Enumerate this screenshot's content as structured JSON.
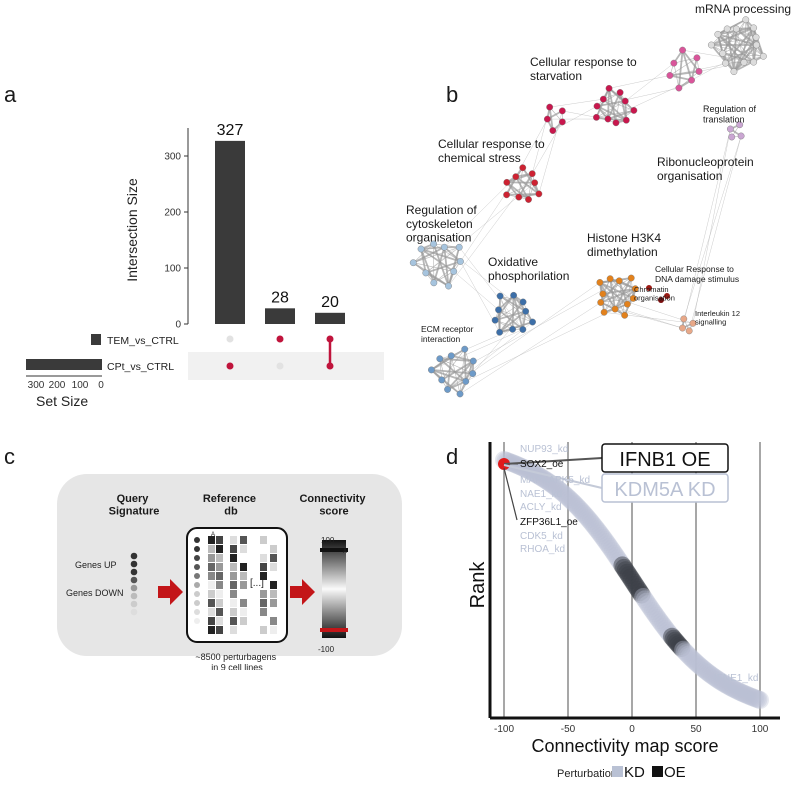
{
  "panels": {
    "a": {
      "letter": "a",
      "chart_data": {
        "type": "bar",
        "title": "",
        "ylabel": "Intersection Size",
        "xlabel": "",
        "ylim": [
          0,
          350
        ],
        "yticks": [
          "0",
          "100",
          "200",
          "300"
        ],
        "categories": [
          "CPt_vs_CTRL only",
          "TEM_vs_CTRL only",
          "TEM_vs_CTRL & CPt_vs_CTRL"
        ],
        "values": [
          327,
          28,
          20
        ],
        "value_labels": [
          "327",
          "28",
          "20"
        ],
        "sets": [
          {
            "name": "TEM_vs_CTRL",
            "size": 48
          },
          {
            "name": "CPt_vs_CTRL",
            "size": 347
          }
        ],
        "set_size_label": "Set Size",
        "set_size_ticks": [
          "300",
          "200",
          "100",
          "0"
        ],
        "matrix": [
          [
            false,
            true
          ],
          [
            true,
            false
          ],
          [
            true,
            true
          ]
        ],
        "bar_color": "#3a3a3a",
        "dot_active_color": "#c0143c",
        "dot_inactive_color": "#e2e2e2"
      }
    },
    "b": {
      "letter": "b",
      "clusters": [
        {
          "label": "mRNA processing",
          "color": "#dcdcdc"
        },
        {
          "label": "Cellular response to\nstarvation",
          "color": "#d9559a"
        },
        {
          "label": "Regulation of\ntranslation",
          "color": "#caa6d2"
        },
        {
          "label": "Ribonucleoprotein\norganisation",
          "color": "#c8174d"
        },
        {
          "label": "Cellular response to\nchemical stress",
          "color": "#cd2232"
        },
        {
          "label": "Regulation of\ncytoskeleton\norganisation",
          "color": "#a6c4de"
        },
        {
          "label": "Oxidative\nphosphorilation",
          "color": "#3d6fa8"
        },
        {
          "label": "Histone H3K4\ndimethylation",
          "color": "#e2811c"
        },
        {
          "label": "Cellular Response to\nDNA damage stimulus",
          "color": "#9b1a14"
        },
        {
          "label": "Chromatin\norganisation",
          "color": "#7a0d0d"
        },
        {
          "label": "Interleukin 12\nsignalling",
          "color": "#e8a888"
        },
        {
          "label": "ECM receptor\ninteraction",
          "color": "#6d9ac8"
        }
      ]
    },
    "c": {
      "letter": "c",
      "query_title": "Query\nSignature",
      "reference_title": "Reference\ndb",
      "score_title": "Connectivity\nscore",
      "genes_up": "Genes UP",
      "genes_down": "Genes DOWN",
      "caption": "~8500 perturbagens\nin 9 cell lines",
      "score_max": "100",
      "score_min": "-100",
      "column_marker": "A",
      "ellipsis": "[...]",
      "arrow_color": "#c31518"
    },
    "d": {
      "letter": "d",
      "chart_data": {
        "type": "scatter",
        "xlabel": "Connectivity map score",
        "ylabel": "Rank",
        "xlim": [
          -100,
          100
        ],
        "xticks": [
          "-100",
          "-50",
          "0",
          "50",
          "100"
        ],
        "legend_title": "Perturbation",
        "legend": [
          {
            "name": "KD",
            "color": "#b9c1d4"
          },
          {
            "name": "OE",
            "color": "#111111"
          }
        ],
        "annotations": [
          {
            "text": "NUP93_kd",
            "type": "KD"
          },
          {
            "text": "SOX2_oe",
            "type": "OE"
          },
          {
            "text": "MAPKAPK5_kd",
            "type": "KD"
          },
          {
            "text": "NAE1_kd",
            "type": "KD"
          },
          {
            "text": "ACLY_kd",
            "type": "KD"
          },
          {
            "text": "ZFP36L1_oe",
            "type": "OE"
          },
          {
            "text": "CDK5_kd",
            "type": "KD"
          },
          {
            "text": "RHOA_kd",
            "type": "KD"
          },
          {
            "text": "IFNE1_kd",
            "type": "KD"
          }
        ],
        "callouts": [
          {
            "text": "IFNB1 OE",
            "type": "OE"
          },
          {
            "text": "KDM5A KD",
            "type": "KD"
          }
        ],
        "highlight_point": {
          "x": -100,
          "color": "#e01b1b"
        }
      }
    }
  }
}
